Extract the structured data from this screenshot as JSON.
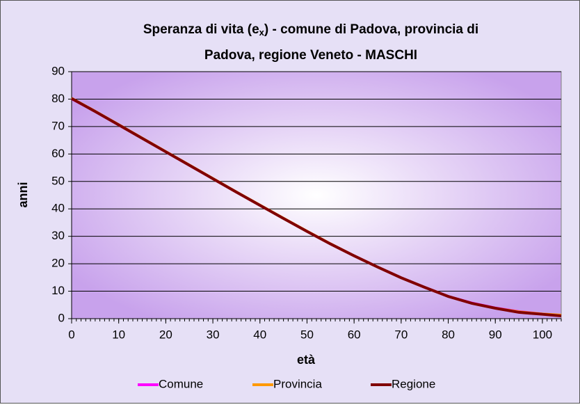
{
  "chart_data": {
    "type": "line",
    "title": {
      "line1": "Speranza di vita (e",
      "subscript": "x",
      "line1_end": ") - comune di Padova, provincia di",
      "line2": "Padova, regione Veneto - MASCHI"
    },
    "x_label": "età",
    "y_label": "anni",
    "x": [
      0,
      5,
      10,
      15,
      20,
      25,
      30,
      35,
      40,
      45,
      50,
      55,
      60,
      65,
      70,
      75,
      80,
      85,
      90,
      95,
      100,
      104
    ],
    "series": [
      {
        "name": "Comune",
        "color": "#ff00ff",
        "values": [
          80.0,
          75.4,
          70.5,
          65.6,
          60.7,
          55.8,
          50.9,
          46.0,
          41.2,
          36.5,
          31.9,
          27.3,
          23.0,
          18.9,
          15.0,
          11.5,
          8.2,
          5.8,
          4.0,
          2.7,
          1.8,
          1.3
        ]
      },
      {
        "name": "Provincia",
        "color": "#ff9900",
        "values": [
          80.4,
          75.7,
          70.8,
          65.9,
          61.0,
          56.1,
          51.2,
          46.3,
          41.5,
          36.7,
          32.0,
          27.4,
          23.0,
          18.9,
          14.9,
          11.4,
          8.1,
          5.6,
          3.9,
          2.6,
          1.8,
          1.4
        ]
      },
      {
        "name": "Regione",
        "color": "#800000",
        "values": [
          80.2,
          75.5,
          70.6,
          65.7,
          60.8,
          55.9,
          51.0,
          46.1,
          41.3,
          36.5,
          31.8,
          27.2,
          22.9,
          18.8,
          14.9,
          11.4,
          8.1,
          5.6,
          3.8,
          2.3,
          1.6,
          1.0
        ]
      }
    ],
    "xlim": [
      0,
      104
    ],
    "xticks": [
      0,
      10,
      20,
      30,
      40,
      50,
      60,
      70,
      80,
      90,
      100
    ],
    "ylim": [
      0,
      90
    ],
    "yticks": [
      0,
      10,
      20,
      30,
      40,
      50,
      60,
      70,
      80,
      90
    ],
    "grid": true,
    "legend": "bottom"
  }
}
